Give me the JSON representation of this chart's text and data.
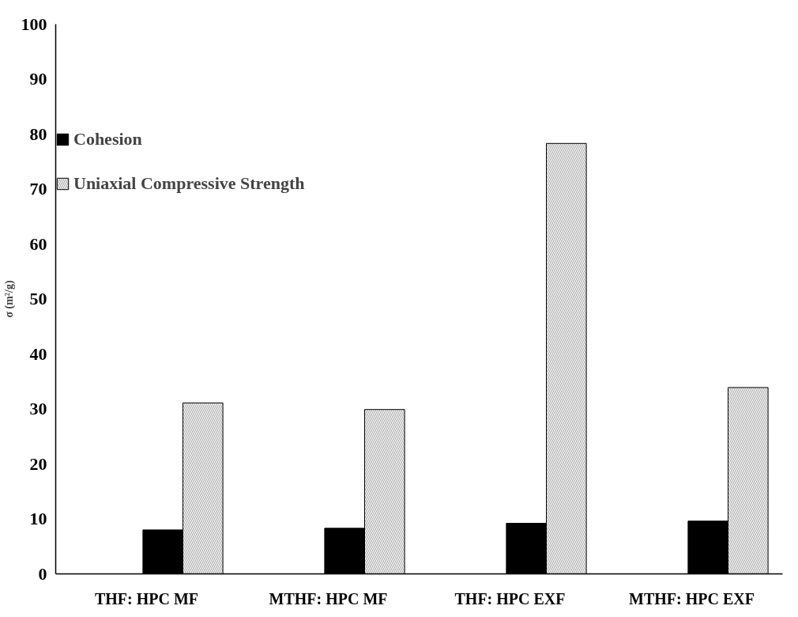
{
  "chart_data": {
    "type": "bar",
    "ylabel": "σ (m²/g)",
    "categories": [
      "THF: HPC MF",
      "MTHF: HPC MF",
      "THF: HPC EXF",
      "MTHF: HPC EXF"
    ],
    "series": [
      {
        "name": "Cohesion",
        "color": "#000000",
        "values": [
          8.0,
          8.3,
          9.2,
          9.6
        ]
      },
      {
        "name": "Uniaxial Compressive Strength",
        "color": "#a6a6a6",
        "values": [
          31.1,
          29.9,
          78.3,
          33.9
        ]
      }
    ],
    "ylim": [
      0,
      100
    ],
    "yticks": [
      0,
      10,
      20,
      30,
      40,
      50,
      60,
      70,
      80,
      90,
      100
    ],
    "grid": false,
    "legend": "top left"
  }
}
